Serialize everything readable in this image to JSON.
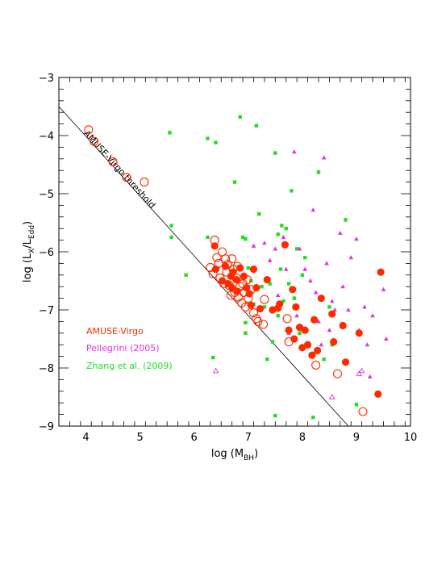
{
  "chart_data": {
    "type": "scatter",
    "title": "",
    "xlabel": {
      "main": "log (M",
      "sub": "BH",
      "close": ")"
    },
    "ylabel": {
      "main": "log (L",
      "sub1": "X",
      "mid": "/L",
      "sub2": "Edd",
      "close": ")"
    },
    "xlim": [
      3.5,
      10
    ],
    "ylim": [
      -9,
      -3
    ],
    "x_ticks": [
      4,
      5,
      6,
      7,
      8,
      9,
      10
    ],
    "y_ticks": [
      -9,
      -8,
      -7,
      -6,
      -5,
      -4,
      -3
    ],
    "grid": false,
    "legend_position": "lower-left",
    "threshold_line": {
      "label": "AMUSE-Virgo threshold",
      "points": [
        [
          3.5,
          -3.5
        ],
        [
          8.85,
          -9.0
        ]
      ]
    },
    "series": [
      {
        "name": "AMUSE-Virgo",
        "color": "#ff2a00",
        "marker": "circle",
        "variants": [
          "filled",
          "open"
        ],
        "filled": [
          [
            6.38,
            -5.9
          ],
          [
            6.4,
            -6.3
          ],
          [
            6.52,
            -6.5
          ],
          [
            6.58,
            -6.25
          ],
          [
            6.63,
            -6.55
          ],
          [
            6.68,
            -6.42
          ],
          [
            6.7,
            -6.62
          ],
          [
            6.72,
            -6.35
          ],
          [
            6.78,
            -6.48
          ],
          [
            6.8,
            -6.68
          ],
          [
            6.85,
            -6.28
          ],
          [
            6.92,
            -6.42
          ],
          [
            6.97,
            -6.62
          ],
          [
            7.02,
            -6.72
          ],
          [
            7.05,
            -6.92
          ],
          [
            7.1,
            -6.3
          ],
          [
            7.15,
            -6.62
          ],
          [
            7.22,
            -6.98
          ],
          [
            7.35,
            -6.48
          ],
          [
            7.45,
            -7.0
          ],
          [
            7.55,
            -6.97
          ],
          [
            7.58,
            -6.9
          ],
          [
            7.68,
            -5.88
          ],
          [
            7.75,
            -7.35
          ],
          [
            7.82,
            -6.65
          ],
          [
            7.85,
            -7.5
          ],
          [
            7.88,
            -6.95
          ],
          [
            7.95,
            -7.3
          ],
          [
            8.0,
            -7.65
          ],
          [
            8.05,
            -7.35
          ],
          [
            8.1,
            -7.6
          ],
          [
            8.18,
            -7.78
          ],
          [
            8.22,
            -7.17
          ],
          [
            8.28,
            -7.7
          ],
          [
            8.35,
            -6.8
          ],
          [
            8.55,
            -7.07
          ],
          [
            8.58,
            -7.55
          ],
          [
            8.75,
            -7.27
          ],
          [
            8.8,
            -7.9
          ],
          [
            9.05,
            -7.4
          ],
          [
            9.4,
            -8.45
          ],
          [
            9.45,
            -6.35
          ]
        ],
        "open": [
          [
            4.05,
            -3.9
          ],
          [
            4.15,
            -4.1
          ],
          [
            4.5,
            -4.45
          ],
          [
            4.75,
            -4.72
          ],
          [
            5.08,
            -4.8
          ],
          [
            6.3,
            -6.27
          ],
          [
            6.35,
            -6.38
          ],
          [
            6.38,
            -5.8
          ],
          [
            6.42,
            -6.1
          ],
          [
            6.45,
            -6.2
          ],
          [
            6.48,
            -6.45
          ],
          [
            6.52,
            -6.0
          ],
          [
            6.55,
            -6.55
          ],
          [
            6.58,
            -6.12
          ],
          [
            6.6,
            -6.35
          ],
          [
            6.62,
            -6.22
          ],
          [
            6.65,
            -6.58
          ],
          [
            6.68,
            -6.75
          ],
          [
            6.7,
            -6.12
          ],
          [
            6.72,
            -6.3
          ],
          [
            6.75,
            -6.7
          ],
          [
            6.78,
            -6.45
          ],
          [
            6.8,
            -6.25
          ],
          [
            6.82,
            -6.78
          ],
          [
            6.85,
            -6.6
          ],
          [
            6.88,
            -6.88
          ],
          [
            6.9,
            -6.55
          ],
          [
            6.92,
            -6.7
          ],
          [
            6.95,
            -6.95
          ],
          [
            6.98,
            -6.48
          ],
          [
            7.0,
            -6.8
          ],
          [
            7.05,
            -6.65
          ],
          [
            7.1,
            -7.05
          ],
          [
            7.15,
            -7.15
          ],
          [
            7.18,
            -7.2
          ],
          [
            7.28,
            -7.25
          ],
          [
            7.3,
            -6.82
          ],
          [
            7.72,
            -7.15
          ],
          [
            7.75,
            -7.55
          ],
          [
            8.25,
            -7.95
          ],
          [
            8.65,
            -8.1
          ],
          [
            9.12,
            -8.75
          ]
        ]
      },
      {
        "name": "Pellegrini (2005)",
        "color": "#e033e0",
        "marker": "triangle",
        "filled": [
          [
            7.1,
            -5.9
          ],
          [
            7.3,
            -5.85
          ],
          [
            7.4,
            -6.15
          ],
          [
            7.5,
            -5.95
          ],
          [
            7.55,
            -6.75
          ],
          [
            7.65,
            -5.75
          ],
          [
            7.7,
            -6.3
          ],
          [
            7.75,
            -7.4
          ],
          [
            7.85,
            -4.28
          ],
          [
            7.95,
            -5.95
          ],
          [
            8.05,
            -6.3
          ],
          [
            8.15,
            -6.5
          ],
          [
            8.2,
            -5.28
          ],
          [
            8.25,
            -6.7
          ],
          [
            8.3,
            -7.2
          ],
          [
            8.4,
            -4.38
          ],
          [
            8.45,
            -6.2
          ],
          [
            8.5,
            -7.35
          ],
          [
            8.55,
            -6.85
          ],
          [
            8.6,
            -7.0
          ],
          [
            8.7,
            -5.68
          ],
          [
            8.75,
            -6.6
          ],
          [
            8.85,
            -7.0
          ],
          [
            8.9,
            -6.1
          ],
          [
            9.0,
            -5.78
          ],
          [
            9.05,
            -7.35
          ],
          [
            9.15,
            -6.95
          ],
          [
            9.2,
            -7.6
          ],
          [
            9.3,
            -7.1
          ],
          [
            9.5,
            -6.65
          ],
          [
            9.55,
            -7.5
          ],
          [
            8.35,
            -7.6
          ],
          [
            7.9,
            -7.1
          ],
          [
            9.25,
            -8.15
          ]
        ],
        "open": [
          [
            6.4,
            -8.05
          ],
          [
            8.55,
            -8.5
          ],
          [
            9.05,
            -8.1
          ],
          [
            9.1,
            -8.05
          ]
        ]
      },
      {
        "name": "Zhang et al. (2009)",
        "color": "#22dd22",
        "marker": "square",
        "points": [
          [
            5.55,
            -3.95
          ],
          [
            5.58,
            -5.55
          ],
          [
            5.58,
            -5.75
          ],
          [
            5.85,
            -6.4
          ],
          [
            6.25,
            -4.05
          ],
          [
            6.25,
            -5.75
          ],
          [
            6.35,
            -7.82
          ],
          [
            6.4,
            -4.12
          ],
          [
            6.75,
            -4.8
          ],
          [
            6.85,
            -3.68
          ],
          [
            6.9,
            -5.75
          ],
          [
            6.95,
            -5.78
          ],
          [
            6.95,
            -7.22
          ],
          [
            7.0,
            -6.28
          ],
          [
            7.05,
            -6.5
          ],
          [
            7.1,
            -6.9
          ],
          [
            7.15,
            -3.83
          ],
          [
            7.2,
            -5.35
          ],
          [
            7.25,
            -6.6
          ],
          [
            7.3,
            -6.95
          ],
          [
            7.4,
            -6.55
          ],
          [
            7.45,
            -7.55
          ],
          [
            7.5,
            -4.3
          ],
          [
            7.5,
            -8.82
          ],
          [
            7.55,
            -5.7
          ],
          [
            7.6,
            -6.3
          ],
          [
            7.62,
            -5.55
          ],
          [
            7.65,
            -6.85
          ],
          [
            7.7,
            -5.6
          ],
          [
            7.75,
            -6.55
          ],
          [
            7.8,
            -4.95
          ],
          [
            7.85,
            -6.8
          ],
          [
            7.9,
            -5.95
          ],
          [
            7.95,
            -7.4
          ],
          [
            8.0,
            -6.4
          ],
          [
            8.05,
            -6.1
          ],
          [
            8.15,
            -7.8
          ],
          [
            8.2,
            -8.85
          ],
          [
            8.3,
            -4.63
          ],
          [
            8.4,
            -7.85
          ],
          [
            8.5,
            -6.95
          ],
          [
            8.55,
            -7.6
          ],
          [
            8.8,
            -5.45
          ],
          [
            9.0,
            -8.63
          ],
          [
            9.05,
            -7.4
          ],
          [
            7.55,
            -7.1
          ],
          [
            7.35,
            -7.85
          ],
          [
            6.95,
            -7.4
          ]
        ]
      }
    ]
  }
}
